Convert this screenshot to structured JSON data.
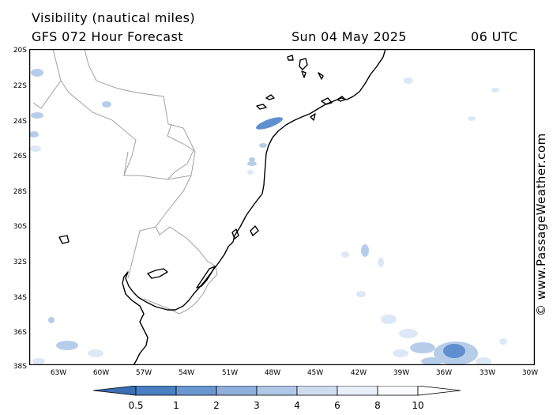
{
  "header": {
    "title": "Visibility (nautical miles)",
    "model": "GFS 072 Hour Forecast",
    "date": "Sun 04 May 2025",
    "time": "06 UTC"
  },
  "map": {
    "lat_labels": [
      "20S",
      "22S",
      "24S",
      "26S",
      "28S",
      "30S",
      "32S",
      "34S",
      "36S",
      "38S"
    ],
    "lon_labels": [
      "63W",
      "60W",
      "57W",
      "54W",
      "51W",
      "48W",
      "45W",
      "42W",
      "39W",
      "36W",
      "33W",
      "30W"
    ],
    "extent": {
      "lon_min": -65.5,
      "lon_max": -30,
      "lat_min": -38,
      "lat_max": -20
    },
    "colors": {
      "coast": "#000000",
      "border": "#a0a0a0",
      "light": "#dde8f6",
      "mid": "#b6cdea",
      "dark": "#5f8fcf"
    }
  },
  "legend": {
    "labels": [
      "0.5",
      "1",
      "2",
      "3",
      "4",
      "6",
      "8",
      "10"
    ],
    "colors": [
      "#3c6eb4",
      "#4a7fc2",
      "#6a97d0",
      "#8fb0dc",
      "#b0c7e6",
      "#cfdcf0",
      "#e9eff8",
      "#f8fafd",
      "#ffffff"
    ]
  },
  "credit": "© www.PassageWeather.com"
}
